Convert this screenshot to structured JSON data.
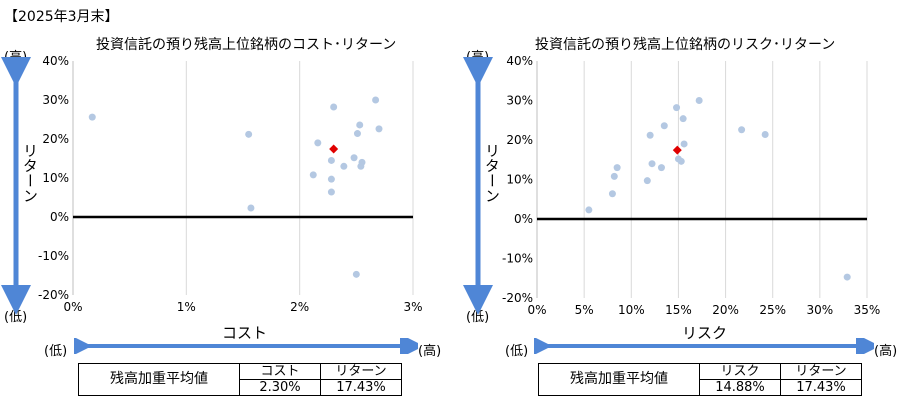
{
  "header": {
    "period": "【2025年3月末】"
  },
  "labels": {
    "high": "(高)",
    "low": "(低)"
  },
  "summary_label": "残高加重平均値",
  "left": {
    "title": "投資信託の預り残高上位銘柄のコスト･リターン",
    "xlabel": "コスト",
    "ylabel": "リターン",
    "summary": {
      "headers": [
        "コスト",
        "リターン"
      ],
      "values": [
        "2.30%",
        "17.43%"
      ]
    }
  },
  "right": {
    "title": "投資信託の預り残高上位銘柄のリスク･リターン",
    "xlabel": "リスク",
    "ylabel": "リターン",
    "summary": {
      "headers": [
        "リスク",
        "リターン"
      ],
      "values": [
        "14.88%",
        "17.43%"
      ]
    }
  },
  "colors": {
    "point": "#b4c8e2",
    "average": "#e00000",
    "arrow": "#4f86d6",
    "grid": "#d9d9d9"
  },
  "chart_data": [
    {
      "type": "scatter",
      "title": "投資信託の預り残高上位銘柄のコスト･リターン",
      "xlabel": "コスト",
      "ylabel": "リターン",
      "xlim": [
        0,
        3
      ],
      "ylim": [
        -20,
        40
      ],
      "xticks": [
        "0%",
        "1%",
        "2%",
        "3%"
      ],
      "yticks": [
        "40%",
        "30%",
        "20%",
        "10%",
        "0%",
        "-10%",
        "-20%"
      ],
      "grid": "vertical",
      "series": [
        {
          "points": [
            [
              0.17,
              25.6
            ],
            [
              1.55,
              21.2
            ],
            [
              1.57,
              2.3
            ],
            [
              2.12,
              10.8
            ],
            [
              2.16,
              19.0
            ],
            [
              2.28,
              14.5
            ],
            [
              2.28,
              9.7
            ],
            [
              2.28,
              6.4
            ],
            [
              2.3,
              28.2
            ],
            [
              2.39,
              13.0
            ],
            [
              2.48,
              15.2
            ],
            [
              2.5,
              -14.7
            ],
            [
              2.51,
              21.4
            ],
            [
              2.53,
              23.6
            ],
            [
              2.54,
              13.0
            ],
            [
              2.55,
              14.0
            ],
            [
              2.67,
              30.0
            ],
            [
              2.7,
              22.6
            ]
          ]
        },
        {
          "name": "",
          "marker": "diamond",
          "points": [
            [
              2.3,
              17.43
            ]
          ]
        }
      ]
    },
    {
      "type": "scatter",
      "title": "投資信託の預り残高上位銘柄のリスク･リターン",
      "xlabel": "リスク",
      "ylabel": "リターン",
      "xlim": [
        0,
        35
      ],
      "ylim": [
        -20,
        40
      ],
      "xticks": [
        "0%",
        "5%",
        "10%",
        "15%",
        "20%",
        "25%",
        "30%",
        "35%"
      ],
      "yticks": [
        "40%",
        "30%",
        "20%",
        "10%",
        "0%",
        "-10%",
        "-20%"
      ],
      "grid": "vertical",
      "series": [
        {
          "points": [
            [
              5.5,
              2.3
            ],
            [
              8.0,
              6.4
            ],
            [
              8.2,
              10.8
            ],
            [
              8.5,
              13.0
            ],
            [
              11.7,
              9.7
            ],
            [
              12.0,
              21.2
            ],
            [
              12.2,
              14.0
            ],
            [
              13.2,
              13.0
            ],
            [
              13.5,
              23.6
            ],
            [
              14.8,
              28.2
            ],
            [
              15.0,
              15.2
            ],
            [
              15.3,
              14.6
            ],
            [
              15.5,
              25.4
            ],
            [
              15.6,
              19.0
            ],
            [
              17.2,
              30.0
            ],
            [
              21.7,
              22.6
            ],
            [
              24.2,
              21.4
            ],
            [
              32.9,
              -14.7
            ]
          ]
        },
        {
          "name": "",
          "marker": "diamond",
          "points": [
            [
              14.88,
              17.43
            ]
          ]
        }
      ]
    }
  ]
}
